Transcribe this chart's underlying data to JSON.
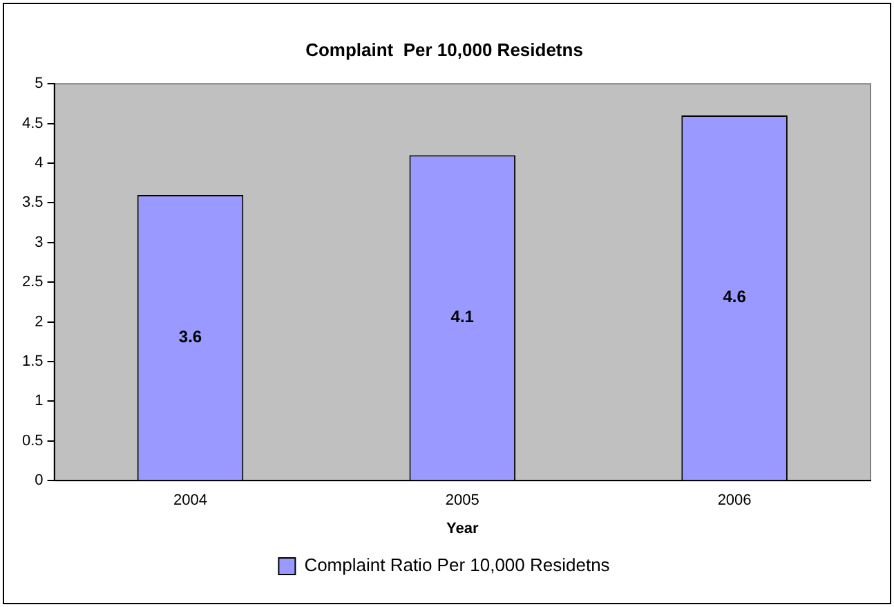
{
  "chart_data": {
    "type": "bar",
    "title": "Complaint  Per 10,000 Residetns",
    "xlabel": "Year",
    "categories": [
      "2004",
      "2005",
      "2006"
    ],
    "series": [
      {
        "name": "Complaint Ratio Per 10,000 Residetns",
        "color": "#9999ff",
        "values": [
          3.6,
          4.1,
          4.6
        ]
      }
    ],
    "ylim": [
      0,
      5
    ],
    "yticks": [
      0,
      0.5,
      1,
      1.5,
      2,
      2.5,
      3,
      3.5,
      4,
      4.5,
      5
    ],
    "grid": false,
    "legend": "bottom",
    "data_labels": true
  }
}
